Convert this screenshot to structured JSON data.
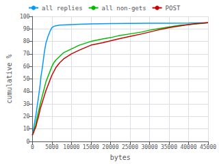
{
  "chart_data": {
    "type": "line",
    "xlabel": "bytes",
    "ylabel": "cumulative %",
    "xlim": [
      0,
      45000
    ],
    "ylim": [
      0,
      100
    ],
    "xticks": [
      0,
      5000,
      10000,
      15000,
      20000,
      25000,
      30000,
      35000,
      40000,
      45000
    ],
    "yticks": [
      0,
      10,
      20,
      30,
      40,
      50,
      60,
      70,
      80,
      90,
      100
    ],
    "grid": true,
    "legend": "upper left",
    "series": [
      {
        "name": "all replies",
        "color": "#0099ff",
        "x": [
          0,
          100,
          300,
          500,
          800,
          1000,
          1200,
          1500,
          1800,
          2000,
          2200,
          2500,
          2800,
          3000,
          3200,
          3500,
          3800,
          4000,
          4500,
          5000,
          5500,
          6000,
          7000,
          8000,
          10000,
          12000,
          15000,
          20000,
          25000,
          30000,
          35000,
          40000,
          45000
        ],
        "values": [
          5,
          7,
          10,
          14,
          19,
          23,
          28,
          34,
          41,
          46,
          52,
          58,
          65,
          70,
          74,
          79,
          82,
          84,
          88,
          91,
          92,
          92.5,
          93,
          93.2,
          93.5,
          93.7,
          94,
          94.2,
          94.4,
          94.5,
          94.6,
          94.7,
          95
        ]
      },
      {
        "name": "all non-gets",
        "color": "#00bb00",
        "x": [
          0,
          100,
          300,
          500,
          800,
          1000,
          1200,
          1500,
          1800,
          2000,
          2500,
          3000,
          3500,
          4000,
          4500,
          5000,
          5500,
          6000,
          7000,
          8000,
          10000,
          12000,
          15000,
          18000,
          20000,
          22000,
          25000,
          28000,
          30000,
          32000,
          35000,
          38000,
          40000,
          42000,
          45000
        ],
        "values": [
          5,
          6,
          8,
          10,
          13,
          16,
          19,
          23,
          27,
          30,
          36,
          42,
          48,
          52,
          56,
          60,
          63,
          65,
          68,
          71,
          74,
          77,
          80,
          82,
          83,
          84.5,
          86,
          87.5,
          89,
          90,
          91.5,
          93,
          93.5,
          94,
          95
        ]
      },
      {
        "name": "POST",
        "color": "#cc0000",
        "x": [
          0,
          100,
          300,
          500,
          800,
          1000,
          1200,
          1500,
          1800,
          2000,
          2500,
          3000,
          3500,
          4000,
          4500,
          5000,
          5500,
          6000,
          7000,
          8000,
          10000,
          12000,
          15000,
          18000,
          20000,
          22000,
          25000,
          28000,
          30000,
          32000,
          35000,
          38000,
          40000,
          42000,
          45000
        ],
        "values": [
          5,
          6,
          7,
          9,
          11,
          13,
          16,
          19,
          23,
          26,
          31,
          36,
          41,
          45,
          49,
          53,
          56,
          59,
          63,
          66,
          70,
          73,
          77,
          79,
          80.5,
          82,
          84,
          86,
          87.5,
          89,
          91,
          92.5,
          93.5,
          94.2,
          95
        ]
      }
    ]
  }
}
